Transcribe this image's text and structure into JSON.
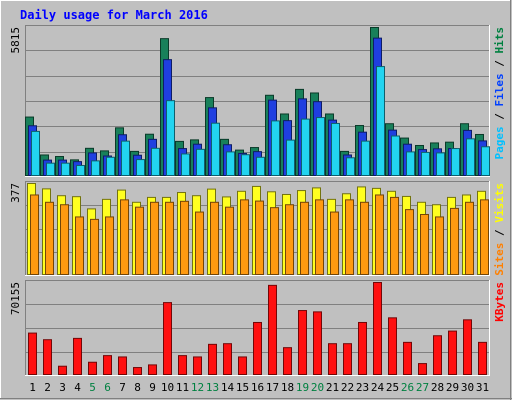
{
  "chart_data": {
    "type": "bar",
    "title": "Daily usage for March 2016",
    "categories": [
      "1",
      "2",
      "3",
      "4",
      "5",
      "6",
      "7",
      "8",
      "9",
      "10",
      "11",
      "12",
      "13",
      "14",
      "15",
      "16",
      "17",
      "18",
      "19",
      "20",
      "21",
      "22",
      "23",
      "24",
      "25",
      "26",
      "27",
      "28",
      "29",
      "30",
      "31"
    ],
    "weekend_days": [
      "5",
      "6",
      "12",
      "13",
      "19",
      "20",
      "26",
      "27"
    ],
    "panels": [
      {
        "id": "hits-files-pages",
        "ymax_label": "5815",
        "ymax": 5815,
        "legend": [
          {
            "text": "Pages",
            "color": "#00c0ff"
          },
          {
            "text": " / ",
            "color": "#000000"
          },
          {
            "text": "Files",
            "color": "#0040ff"
          },
          {
            "text": " / ",
            "color": "#000000"
          },
          {
            "text": "Hits",
            "color": "#008040"
          }
        ],
        "series": [
          {
            "name": "Hits",
            "color": "#18805a",
            "values": [
              2320,
              840,
              780,
              650,
              1100,
              1000,
              1900,
              980,
              1650,
              5380,
              1370,
              1430,
              3080,
              1450,
              1030,
              1130,
              3170,
              2440,
              3400,
              3260,
              2440,
              980,
              1990,
              5815,
              2060,
              1500,
              1210,
              1310,
              1340,
              2060,
              1640
            ]
          },
          {
            "name": "Files",
            "color": "#1f3fe0",
            "values": [
              1980,
              640,
              640,
              580,
              920,
              800,
              1630,
              830,
              1450,
              4560,
              1090,
              1260,
              2680,
              1240,
              900,
              970,
              2980,
              2180,
              3030,
              2920,
              2200,
              840,
              1730,
              5400,
              1810,
              1260,
              1050,
              1080,
              1090,
              1800,
              1390
            ]
          },
          {
            "name": "Pages",
            "color": "#22d4f0",
            "values": [
              1760,
              520,
              520,
              430,
              610,
              750,
              1380,
              660,
              1100,
              2960,
              880,
              1060,
              2080,
              960,
              850,
              750,
              2170,
              1420,
              2240,
              2300,
              2070,
              730,
              1380,
              4290,
              1580,
              960,
              940,
              920,
              1090,
              1470,
              1160
            ]
          }
        ]
      },
      {
        "id": "visits-sites",
        "ymax_label": "377",
        "ymax": 377,
        "legend": [
          {
            "text": "Sites",
            "color": "#ff8000"
          },
          {
            "text": " / ",
            "color": "#000000"
          },
          {
            "text": "Visits",
            "color": "#ffff00"
          }
        ],
        "series": [
          {
            "name": "Visits",
            "color": "#ffff20",
            "values": [
              377,
              355,
              327,
              323,
              273,
              312,
              350,
              300,
              320,
              320,
              340,
              327,
              354,
              322,
              345,
              365,
              343,
              332,
              348,
              359,
              312,
              335,
              363,
              357,
              345,
              324,
              300,
              290,
              320,
              330,
              345
            ]
          },
          {
            "name": "Sites",
            "color": "#ff9a10",
            "values": [
              330,
              300,
              290,
              240,
              230,
              240,
              310,
              280,
              300,
              300,
              304,
              260,
              300,
              280,
              310,
              305,
              278,
              290,
              300,
              310,
              260,
              310,
              300,
              330,
              320,
              270,
              250,
              240,
              275,
              300,
              310
            ]
          }
        ]
      },
      {
        "id": "kbytes",
        "ymax_label": "70155",
        "ymax": 70155,
        "legend": [
          {
            "text": "KBytes",
            "color": "#ff0000"
          }
        ],
        "series": [
          {
            "name": "KBytes",
            "color": "#ff1010",
            "values": [
              32000,
              27000,
              7000,
              28000,
              10000,
              15000,
              14000,
              6000,
              8000,
              55000,
              15000,
              14000,
              23500,
              24000,
              14000,
              40000,
              68000,
              21000,
              49000,
              48000,
              24000,
              24000,
              40000,
              70155,
              43500,
              25000,
              9000,
              30000,
              33500,
              42000,
              25000
            ]
          }
        ]
      }
    ],
    "grid": true
  }
}
